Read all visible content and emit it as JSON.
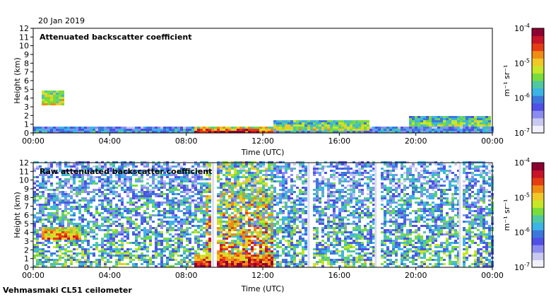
{
  "date": "20 Jan 2019",
  "footer": "Vehmasmaki CL51 ceilometer",
  "colors": {
    "palette": [
      "#f2f0fa",
      "#c8c8f0",
      "#8c8cf0",
      "#5050e6",
      "#3c78dc",
      "#3cb4e6",
      "#50c8a0",
      "#78dc3c",
      "#c8e628",
      "#f0c828",
      "#f08c14",
      "#e63c14",
      "#c81428",
      "#8c0032"
    ],
    "axis": "#000000"
  },
  "chart_data": [
    {
      "type": "heatmap",
      "title": "Attenuated backscatter coefficient",
      "xlabel": "Time (UTC)",
      "ylabel": "Height (km)",
      "x_ticks": [
        "00:00",
        "04:00",
        "08:00",
        "12:00",
        "16:00",
        "20:00",
        "00:00"
      ],
      "x_range_hours": [
        0,
        24
      ],
      "y_ticks": [
        "0",
        "1",
        "2",
        "3",
        "4",
        "5",
        "6",
        "7",
        "8",
        "9",
        "10",
        "11",
        "12"
      ],
      "ylim_km": [
        0,
        12
      ],
      "colorbar": {
        "label": "m⁻¹ sr⁻¹",
        "ticks": [
          {
            "base": "10",
            "exp": "-7"
          },
          {
            "base": "10",
            "exp": "-6"
          },
          {
            "base": "10",
            "exp": "-5"
          },
          {
            "base": "10",
            "exp": "-4"
          }
        ],
        "log_range": [
          -7,
          -4
        ]
      },
      "features": [
        {
          "name": "low-level aerosol",
          "t0": 0,
          "t1": 24,
          "h0": 0,
          "h1": 0.6,
          "level": 0.3
        },
        {
          "name": "elevated layer",
          "t0": 0.3,
          "t1": 1.6,
          "h0": 3.0,
          "h1": 4.8,
          "level": 0.62
        },
        {
          "name": "cloud base",
          "t0": 8.4,
          "t1": 12.5,
          "h0": 0.0,
          "h1": 0.5,
          "level": 0.85
        },
        {
          "name": "cloud band",
          "t0": 12.5,
          "t1": 17.5,
          "h0": 0.2,
          "h1": 1.3,
          "level": 0.55
        },
        {
          "name": "cloud band",
          "t0": 19.5,
          "t1": 23.8,
          "h0": 0.6,
          "h1": 1.9,
          "level": 0.52
        }
      ]
    },
    {
      "type": "heatmap",
      "title": "Raw attenuated backscatter coefficient",
      "xlabel": "Time (UTC)",
      "ylabel": "Height (km)",
      "x_ticks": [
        "00:00",
        "04:00",
        "08:00",
        "12:00",
        "16:00",
        "20:00",
        "00:00"
      ],
      "x_range_hours": [
        0,
        24
      ],
      "y_ticks": [
        "0",
        "1",
        "2",
        "3",
        "4",
        "5",
        "6",
        "7",
        "8",
        "9",
        "10",
        "11",
        "12"
      ],
      "ylim_km": [
        0,
        12
      ],
      "colorbar": {
        "label": "m⁻¹ sr⁻¹",
        "ticks": [
          {
            "base": "10",
            "exp": "-7"
          },
          {
            "base": "10",
            "exp": "-6"
          },
          {
            "base": "10",
            "exp": "-5"
          },
          {
            "base": "10",
            "exp": "-4"
          }
        ],
        "log_range": [
          -7,
          -4
        ]
      },
      "gaps_hours": [
        9.4,
        14.4,
        17.9,
        22.3
      ],
      "features": [
        {
          "name": "noise background",
          "t0": 0,
          "t1": 24,
          "h0": 0,
          "h1": 12,
          "level": 0.45
        },
        {
          "name": "elevated layer",
          "t0": 0.3,
          "t1": 2.5,
          "h0": 3.0,
          "h1": 4.6,
          "level": 0.75
        },
        {
          "name": "precip streaks",
          "t0": 9.0,
          "t1": 12.5,
          "h0": 1.0,
          "h1": 12.0,
          "level": 0.72
        },
        {
          "name": "cloud base",
          "t0": 8.4,
          "t1": 12.5,
          "h0": 0.0,
          "h1": 1.4,
          "level": 0.88
        }
      ]
    }
  ]
}
